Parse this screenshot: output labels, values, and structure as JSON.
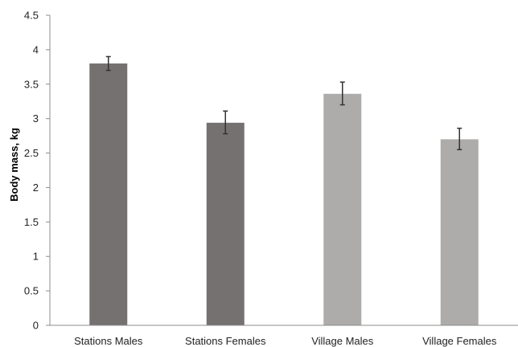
{
  "chart_data": {
    "type": "bar",
    "title": "",
    "xlabel": "",
    "ylabel": "Body mass, kg",
    "categories": [
      "Stations Males",
      "Stations Females",
      "Village Males",
      "Village Females"
    ],
    "values": [
      3.8,
      2.94,
      3.36,
      2.7
    ],
    "error_low": [
      3.7,
      2.78,
      3.2,
      2.55
    ],
    "error_high": [
      3.9,
      3.11,
      3.53,
      2.86
    ],
    "bar_colors": [
      "#757170",
      "#757170",
      "#aeabab",
      "#aeabab"
    ],
    "ylim": [
      0,
      4.5
    ],
    "yticks": [
      0,
      0.5,
      1,
      1.5,
      2,
      2.5,
      3,
      3.5,
      4,
      4.5
    ],
    "ytick_labels": [
      "0",
      "0.5",
      "1",
      "1.5",
      "2",
      "2.5",
      "3",
      "3.5",
      "4",
      "4.5"
    ],
    "grid": false,
    "legend": "none"
  }
}
